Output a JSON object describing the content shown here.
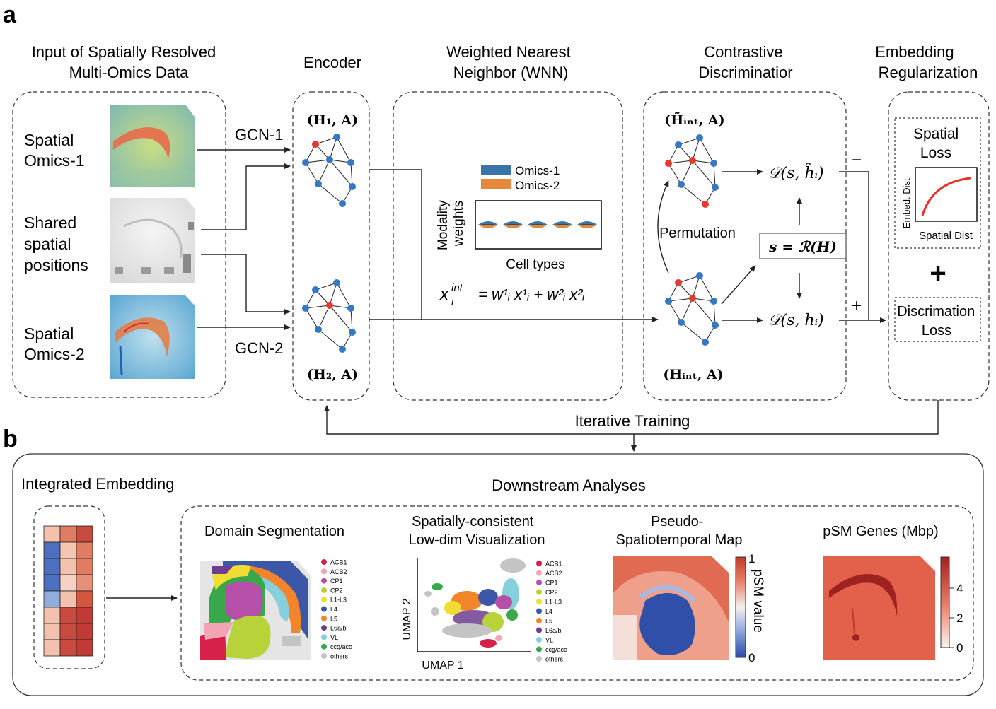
{
  "panel_a": {
    "letter": "a",
    "sections": {
      "input": [
        "Input of Spatially Resolved",
        "Multi-Omics Data"
      ],
      "encoder": "Encoder",
      "wnn": [
        "Weighted Nearest",
        "Neighbor (WNN)"
      ],
      "discriminator": [
        "Contrastive",
        "Discriminatior"
      ],
      "regularization": [
        "Embedding",
        "Regularization"
      ]
    },
    "inputs": {
      "omics1": [
        "Spatial",
        "Omics-1"
      ],
      "shared": [
        "Shared",
        "spatial",
        "positions"
      ],
      "omics2": [
        "Spatial",
        "Omics-2"
      ]
    },
    "gcn1": "GCN-1",
    "gcn2": "GCN-2",
    "h1": "(H₁, A)",
    "h2": "(H₂, A)",
    "wnn_box": {
      "legend": [
        "Omics-1",
        "Omics-2"
      ],
      "ylabel": [
        "Modality",
        "weights"
      ],
      "xlabel": "Cell types",
      "formula_lhs": "x",
      "formula_lhs_sup": "int",
      "formula_lhs_sub": "i",
      "formula_rhs": "= w¹ᵢ x¹ᵢ + w²ᵢ x²ᵢ"
    },
    "disc": {
      "h_tilde": "(H̃ᵢₙₜ, A)",
      "h_int": "(Hᵢₙₜ, A)",
      "permutation": "Permutation",
      "readout": "s = ℛ(H)",
      "d_tilde": "𝒟(s, h̃ᵢ)",
      "d": "𝒟(s, hᵢ)",
      "minus": "−",
      "plus": "+"
    },
    "reg": {
      "spatial_loss": [
        "Spatial",
        "Loss"
      ],
      "ylabel": "Embed. Dist.",
      "xlabel": "Spatial Dist",
      "plus_big": "+",
      "disc_loss": [
        "Discrimation",
        "Loss"
      ]
    },
    "iterative": "Iterative Training"
  },
  "panel_b": {
    "letter": "b",
    "integrated": "Integrated Embedding",
    "downstream": "Downstream Analyses",
    "domain_seg": "Domain Segmentation",
    "umap_title": [
      "Spatially-consistent",
      "Low-dim Visualization"
    ],
    "umap_x": "UMAP 1",
    "umap_y": "UMAP 2",
    "psm_title": [
      "Pseudo-",
      "Spatiotemporal Map"
    ],
    "psm_cbar_label": "pSM value",
    "psm_cbar_ticks": [
      "1",
      "0"
    ],
    "genes_title": "pSM Genes (Mbp)",
    "genes_cbar_ticks": [
      "4",
      "2",
      "0"
    ],
    "legend": [
      "ACB1",
      "ACB2",
      "CP1",
      "CP2",
      "L1-L3",
      "L4",
      "L5",
      "L6a/b",
      "VL",
      "ccg/aco",
      "others"
    ],
    "legend_colors": [
      "#d6214a",
      "#f2a3b4",
      "#b64fa8",
      "#b8d33a",
      "#f0dc32",
      "#3d57a8",
      "#f2842a",
      "#6c3e8f",
      "#86d0de",
      "#3aa84a",
      "#c4c4c4"
    ]
  }
}
